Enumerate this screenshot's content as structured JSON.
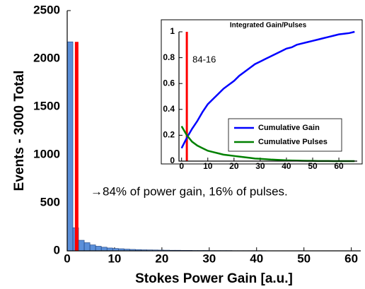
{
  "chart_data": [
    {
      "type": "histogram",
      "xlabel": "Stokes Power Gain [a.u.]",
      "ylabel": "Events - 3000 Total",
      "bins": [
        0,
        1.2,
        2.4,
        3.6,
        4.8,
        6,
        7.2,
        8.4,
        9.6,
        10.8,
        12,
        13.2,
        14.4,
        15.6,
        16.8,
        18,
        19.2,
        20.4,
        21.6,
        22.8,
        24,
        25.2,
        26.4,
        27.6,
        28.8,
        30,
        31.2,
        32.4,
        33.6,
        34.8,
        36,
        37.2,
        38.4,
        39.6,
        40.8,
        42,
        43.2,
        44.4,
        45.6,
        46.8,
        48,
        49.2,
        50.4,
        51.6,
        52.8,
        54,
        55.2,
        56.4,
        57.6,
        58.8,
        60,
        61.2
      ],
      "values": [
        2175,
        240,
        110,
        85,
        62,
        48,
        38,
        30,
        25,
        22,
        18,
        15,
        13,
        11,
        10,
        9,
        8,
        7,
        6,
        6,
        5,
        5,
        4,
        4,
        4,
        3,
        3,
        3,
        3,
        2,
        2,
        2,
        2,
        2,
        2,
        1,
        1,
        1,
        1,
        1,
        1,
        1,
        1,
        1,
        1,
        1,
        1,
        0,
        1,
        1,
        1
      ],
      "color": "#5b8fd9",
      "xlim": [
        0,
        62
      ],
      "xticks": [
        0,
        10,
        20,
        30,
        40,
        50,
        60
      ],
      "ylim": [
        0,
        2500
      ],
      "yticks": [
        0,
        500,
        1000,
        1500,
        2000,
        2500
      ],
      "marker_line": {
        "x": 2,
        "ymax": 2175,
        "color": "#ff0000"
      },
      "annotation": "→84% of power gain, 16% of pulses."
    },
    {
      "type": "line",
      "title": "Integrated Gain/Pulses",
      "x": [
        0,
        2,
        4,
        6,
        8,
        10,
        12,
        14,
        16,
        18,
        20,
        22,
        24,
        26,
        28,
        30,
        32,
        34,
        36,
        38,
        40,
        42,
        44,
        46,
        48,
        50,
        52,
        54,
        56,
        58,
        60,
        62,
        64,
        66
      ],
      "series": [
        {
          "name": "Cumulative Gain",
          "color": "#0000ff",
          "values": [
            0.1,
            0.18,
            0.25,
            0.31,
            0.38,
            0.44,
            0.48,
            0.52,
            0.56,
            0.59,
            0.62,
            0.66,
            0.69,
            0.72,
            0.75,
            0.77,
            0.79,
            0.81,
            0.83,
            0.85,
            0.87,
            0.88,
            0.9,
            0.91,
            0.92,
            0.93,
            0.94,
            0.95,
            0.96,
            0.97,
            0.98,
            0.985,
            0.99,
            1.0
          ]
        },
        {
          "name": "Cumulative Pulses",
          "color": "#008000",
          "values": [
            0.27,
            0.2,
            0.15,
            0.12,
            0.1,
            0.08,
            0.07,
            0.06,
            0.05,
            0.045,
            0.04,
            0.035,
            0.03,
            0.025,
            0.02,
            0.018,
            0.015,
            0.012,
            0.01,
            0.008,
            0.006,
            0.005,
            0.004,
            0.003,
            0.002,
            0.002,
            0.001,
            0.001,
            0.001,
            0,
            0,
            0,
            0,
            0
          ]
        }
      ],
      "xlim": [
        -1,
        67
      ],
      "xticks": [
        0,
        10,
        20,
        30,
        40,
        50,
        60
      ],
      "ylim": [
        0,
        1
      ],
      "yticks": [
        0,
        0.2,
        0.4,
        0.6,
        0.8,
        1
      ],
      "marker_line": {
        "x": 2,
        "color": "#ff0000"
      },
      "annotation": "84-16",
      "legend": "lower right"
    }
  ]
}
